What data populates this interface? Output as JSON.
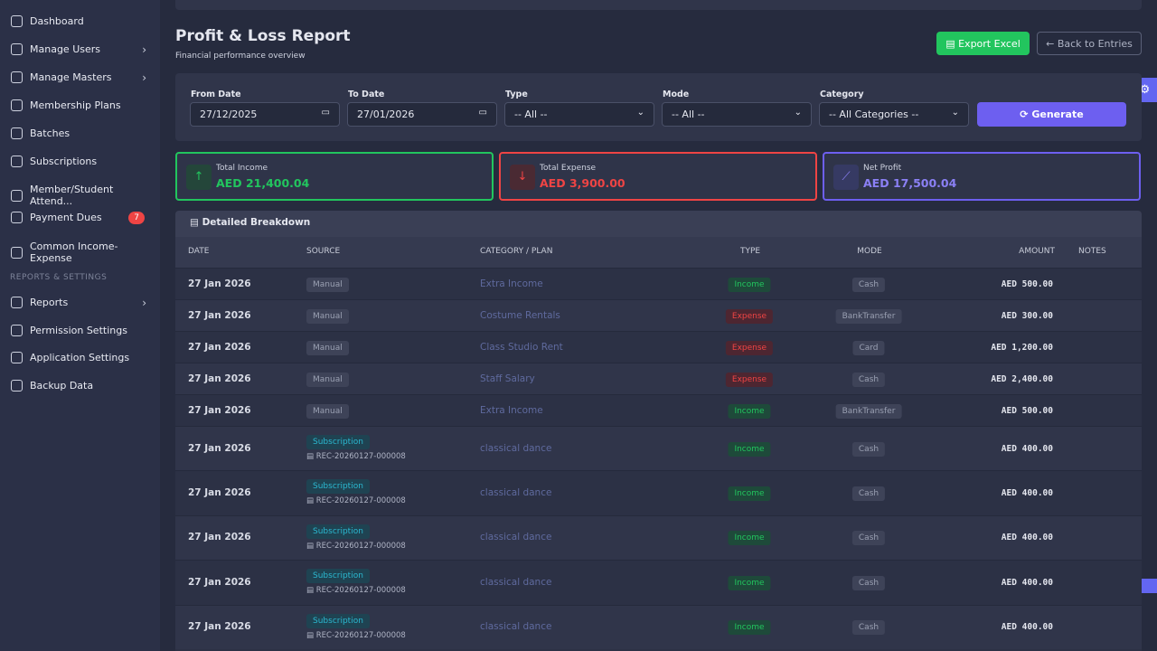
{
  "sidebar": {
    "items": [
      "Dashboard",
      "Manage Users",
      "Manage Masters",
      "Membership Plans",
      "Batches",
      "Subscriptions",
      "Member/Student Attend...",
      "Payment Dues",
      "Common Income-Expense"
    ],
    "badge": 7,
    "section": "REPORTS & SETTINGS",
    "items2": [
      "Reports",
      "Permission Settings",
      "Application Settings",
      "Backup Data"
    ]
  },
  "header": {
    "title": "Profit & Loss Report",
    "subtitle": "Financial performance overview",
    "export": "Export Excel",
    "back": "Back to Entries"
  },
  "filters": {
    "from_label": "From Date",
    "from_value": "27/12/2025",
    "to_label": "To Date",
    "to_value": "27/01/2026",
    "type_label": "Type",
    "type_value": "-- All --",
    "mode_label": "Mode",
    "mode_value": "-- All --",
    "category_label": "Category",
    "category_value": "-- All Categories --",
    "generate": "Generate"
  },
  "summary": [
    {
      "label": "Total Income",
      "value": "AED 21,400.04"
    },
    {
      "label": "Total Expense",
      "value": "AED 3,900.00"
    },
    {
      "label": "Net Profit",
      "value": "AED 17,500.04"
    }
  ],
  "table": {
    "title": "Detailed Breakdown",
    "columns": [
      "DATE",
      "SOURCE",
      "CATEGORY / PLAN",
      "TYPE",
      "MODE",
      "AMOUNT",
      "NOTES"
    ],
    "rows": [
      {
        "date": "27 Jan 2026",
        "source": "Manual",
        "category": "Extra Income",
        "type": "Income",
        "mode": "Cash",
        "amount": "AED 500.00"
      },
      {
        "date": "27 Jan 2026",
        "source": "Manual",
        "category": "Costume Rentals",
        "type": "Expense",
        "mode": "BankTransfer",
        "amount": "AED 300.00"
      },
      {
        "date": "27 Jan 2026",
        "source": "Manual",
        "category": "Class Studio Rent",
        "type": "Expense",
        "mode": "Card",
        "amount": "AED 1,200.00"
      },
      {
        "date": "27 Jan 2026",
        "source": "Manual",
        "category": "Staff Salary",
        "type": "Expense",
        "mode": "Cash",
        "amount": "AED 2,400.00"
      },
      {
        "date": "27 Jan 2026",
        "source": "Manual",
        "category": "Extra Income",
        "type": "Income",
        "mode": "BankTransfer",
        "amount": "AED 500.00"
      },
      {
        "date": "27 Jan 2026",
        "source": "Subscription",
        "ref": "REC-20260127-000008",
        "category": "classical dance",
        "type": "Income",
        "mode": "Cash",
        "amount": "AED 400.00"
      },
      {
        "date": "27 Jan 2026",
        "source": "Subscription",
        "ref": "REC-20260127-000008",
        "category": "classical dance",
        "type": "Income",
        "mode": "Cash",
        "amount": "AED 400.00"
      },
      {
        "date": "27 Jan 2026",
        "source": "Subscription",
        "ref": "REC-20260127-000008",
        "category": "classical dance",
        "type": "Income",
        "mode": "Cash",
        "amount": "AED 400.00"
      },
      {
        "date": "27 Jan 2026",
        "source": "Subscription",
        "ref": "REC-20260127-000008",
        "category": "classical dance",
        "type": "Income",
        "mode": "Cash",
        "amount": "AED 400.00"
      },
      {
        "date": "27 Jan 2026",
        "source": "Subscription",
        "ref": "REC-20260127-000008",
        "category": "classical dance",
        "type": "Income",
        "mode": "Cash",
        "amount": "AED 400.00"
      }
    ]
  }
}
